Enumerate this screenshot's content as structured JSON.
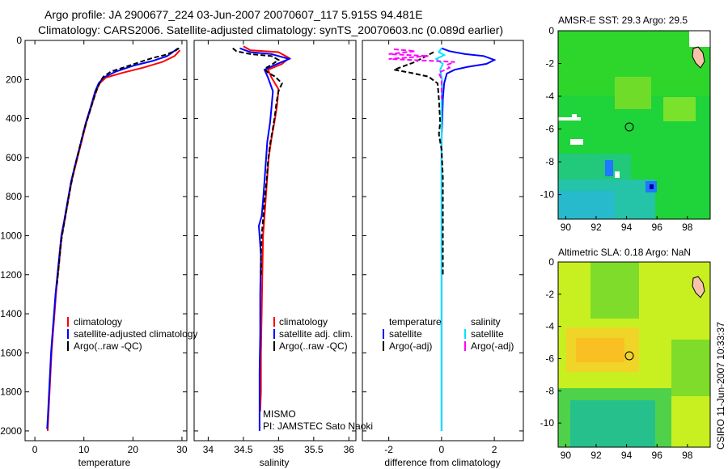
{
  "header": {
    "line1": "Argo profile: JA 2900677_224 03-Jun-2007 20070607_117 5.915S 94.481E",
    "line2": "Climatology: CARS2006. Satellite-adjusted climatology: synTS_20070603.nc (0.089d earlier)"
  },
  "footer": "CSIRO 11-Jun-2007 10:33:37",
  "colors": {
    "red": "#ff0000",
    "blue": "#0000ff",
    "black": "#000000",
    "cyan": "#00e5ff",
    "magenta": "#ff00ff"
  },
  "chart_data": [
    {
      "type": "line",
      "panel": "temperature",
      "xlabel": "temperature",
      "ylabel": "",
      "xlim": [
        -2,
        31
      ],
      "ylim": [
        2050,
        0
      ],
      "xticks": [
        "0",
        "10",
        "20",
        "30"
      ],
      "xtick_values": [
        0,
        10,
        20,
        30
      ],
      "yticks": [
        "0",
        "200",
        "400",
        "600",
        "800",
        "1000",
        "1200",
        "1400",
        "1600",
        "1800",
        "2000"
      ],
      "ytick_values": [
        0,
        200,
        400,
        600,
        800,
        1000,
        1200,
        1400,
        1600,
        1800,
        2000
      ],
      "legend": [
        "climatology",
        "satellite-adjusted climatology",
        "Argo(..raw -QC)"
      ],
      "series": [
        {
          "name": "climatology",
          "color": "red",
          "dash": "",
          "points": [
            [
              29.6,
              50
            ],
            [
              28.5,
              80
            ],
            [
              26,
              110
            ],
            [
              22,
              140
            ],
            [
              18,
              165
            ],
            [
              14.5,
              190
            ],
            [
              13.2,
              220
            ],
            [
              12.5,
              260
            ],
            [
              11.5,
              340
            ],
            [
              10.5,
              420
            ],
            [
              9.5,
              520
            ],
            [
              8.5,
              620
            ],
            [
              7.5,
              720
            ],
            [
              6.8,
              820
            ],
            [
              6.1,
              920
            ],
            [
              5.5,
              1000
            ],
            [
              5.1,
              1100
            ],
            [
              4.7,
              1200
            ],
            [
              4.3,
              1300
            ],
            [
              4.0,
              1400
            ],
            [
              3.7,
              1500
            ],
            [
              3.4,
              1600
            ],
            [
              3.2,
              1700
            ],
            [
              3.0,
              1800
            ],
            [
              2.8,
              1900
            ],
            [
              2.6,
              2000
            ]
          ]
        },
        {
          "name": "satellite-adjusted",
          "color": "blue",
          "dash": "",
          "points": [
            [
              29.2,
              40
            ],
            [
              27,
              80
            ],
            [
              24,
              105
            ],
            [
              20,
              130
            ],
            [
              16.5,
              160
            ],
            [
              14,
              190
            ],
            [
              13,
              220
            ],
            [
              12.3,
              260
            ],
            [
              11.4,
              340
            ],
            [
              10.4,
              420
            ],
            [
              9.4,
              520
            ],
            [
              8.4,
              620
            ],
            [
              7.4,
              720
            ],
            [
              6.7,
              820
            ],
            [
              6.0,
              920
            ],
            [
              5.4,
              1000
            ],
            [
              5.0,
              1100
            ],
            [
              4.6,
              1200
            ],
            [
              4.2,
              1300
            ],
            [
              3.9,
              1400
            ],
            [
              3.6,
              1500
            ],
            [
              3.3,
              1600
            ],
            [
              3.1,
              1700
            ],
            [
              2.9,
              1800
            ],
            [
              2.7,
              1900
            ],
            [
              2.5,
              1990
            ]
          ]
        },
        {
          "name": "Argo",
          "color": "black",
          "dash": "6 3",
          "points": [
            [
              29.4,
              40
            ],
            [
              28.5,
              55
            ],
            [
              26.5,
              75
            ],
            [
              24,
              90
            ],
            [
              21.5,
              110
            ],
            [
              18.5,
              135
            ],
            [
              15.5,
              160
            ],
            [
              14,
              185
            ],
            [
              13.6,
              200
            ],
            [
              12.8,
              240
            ],
            [
              12,
              300
            ],
            [
              11,
              380
            ],
            [
              10,
              460
            ],
            [
              9,
              560
            ],
            [
              8,
              660
            ],
            [
              7.2,
              760
            ],
            [
              6.5,
              860
            ],
            [
              5.8,
              960
            ],
            [
              5.3,
              1040
            ],
            [
              4.9,
              1150
            ],
            [
              4.5,
              1250
            ]
          ]
        }
      ]
    },
    {
      "type": "line",
      "panel": "salinity",
      "xlabel": "salinity",
      "xlim": [
        33.8,
        36.1
      ],
      "ylim": [
        2050,
        0
      ],
      "xticks": [
        "34",
        "34.5",
        "35",
        "35.5",
        "36"
      ],
      "xtick_values": [
        34,
        34.5,
        35,
        35.5,
        36
      ],
      "legend": [
        "climatology",
        "satellite adj. clim.",
        "Argo(..raw -QC)"
      ],
      "annotations": [
        "MISMO",
        "PI: JAMSTEC Sato Naoki"
      ],
      "series": [
        {
          "name": "climatology",
          "color": "red",
          "dash": "",
          "points": [
            [
              34.5,
              30
            ],
            [
              34.6,
              50
            ],
            [
              35.0,
              60
            ],
            [
              35.15,
              90
            ],
            [
              35.05,
              120
            ],
            [
              34.85,
              150
            ],
            [
              34.9,
              190
            ],
            [
              35.0,
              250
            ],
            [
              34.98,
              330
            ],
            [
              34.95,
              400
            ],
            [
              34.9,
              500
            ],
            [
              34.86,
              600
            ],
            [
              34.84,
              700
            ],
            [
              34.82,
              800
            ],
            [
              34.8,
              900
            ],
            [
              34.78,
              1000
            ],
            [
              34.77,
              1200
            ],
            [
              34.76,
              1400
            ],
            [
              34.75,
              1600
            ],
            [
              34.75,
              1800
            ],
            [
              34.74,
              1900
            ]
          ]
        },
        {
          "name": "satellite",
          "color": "blue",
          "dash": "",
          "points": [
            [
              34.45,
              40
            ],
            [
              34.6,
              60
            ],
            [
              34.9,
              70
            ],
            [
              35.15,
              95
            ],
            [
              34.95,
              125
            ],
            [
              34.8,
              150
            ],
            [
              34.85,
              190
            ],
            [
              34.92,
              260
            ],
            [
              34.9,
              340
            ],
            [
              34.88,
              420
            ],
            [
              34.84,
              520
            ],
            [
              34.82,
              620
            ],
            [
              34.8,
              720
            ],
            [
              34.78,
              820
            ],
            [
              34.76,
              900
            ],
            [
              34.72,
              950
            ],
            [
              34.73,
              1000
            ],
            [
              34.75,
              1100
            ],
            [
              34.74,
              1300
            ],
            [
              34.74,
              1500
            ],
            [
              34.73,
              1700
            ],
            [
              34.73,
              1900
            ],
            [
              34.73,
              2000
            ]
          ]
        },
        {
          "name": "Argo",
          "color": "black",
          "dash": "6 3",
          "points": [
            [
              34.35,
              40
            ],
            [
              34.4,
              55
            ],
            [
              34.6,
              70
            ],
            [
              34.9,
              80
            ],
            [
              35.0,
              100
            ],
            [
              34.9,
              125
            ],
            [
              34.8,
              145
            ],
            [
              34.85,
              165
            ],
            [
              34.95,
              185
            ],
            [
              35.05,
              220
            ],
            [
              35.0,
              260
            ],
            [
              34.97,
              320
            ],
            [
              34.95,
              380
            ],
            [
              34.92,
              450
            ],
            [
              34.88,
              530
            ],
            [
              34.85,
              620
            ],
            [
              34.83,
              720
            ],
            [
              34.8,
              820
            ],
            [
              34.78,
              920
            ],
            [
              34.76,
              1000
            ],
            [
              34.75,
              1100
            ],
            [
              34.75,
              1200
            ]
          ]
        }
      ]
    },
    {
      "type": "line",
      "panel": "difference",
      "xlabel": "difference from climatology",
      "xlim": [
        -3,
        3.1
      ],
      "ylim": [
        2050,
        0
      ],
      "xticks": [
        "-2",
        "0",
        "2"
      ],
      "xtick_values": [
        -2,
        0,
        2
      ],
      "legend_headers": [
        "temperature",
        "salinity"
      ],
      "legend_left": [
        "satellite",
        "Argo(-adj)"
      ],
      "legend_right": [
        "satellite",
        "Argo(-adj)"
      ],
      "series": [
        {
          "name": "temp satellite",
          "color": "blue",
          "dash": "",
          "points": [
            [
              0,
              40
            ],
            [
              0.3,
              55
            ],
            [
              0.9,
              70
            ],
            [
              1.6,
              80
            ],
            [
              2.0,
              100
            ],
            [
              1.7,
              120
            ],
            [
              1.0,
              135
            ],
            [
              0.5,
              150
            ],
            [
              0.2,
              170
            ],
            [
              0.1,
              220
            ],
            [
              0.05,
              300
            ],
            [
              0.03,
              400
            ],
            [
              0.0,
              500
            ],
            [
              0.0,
              700
            ],
            [
              0.0,
              900
            ],
            [
              0.0,
              1200
            ],
            [
              0.0,
              1500
            ],
            [
              0.0,
              1800
            ],
            [
              0.0,
              2000
            ]
          ]
        },
        {
          "name": "sal satellite",
          "color": "cyan",
          "dash": "",
          "points": [
            [
              0,
              40
            ],
            [
              -0.1,
              60
            ],
            [
              0.1,
              75
            ],
            [
              -0.2,
              95
            ],
            [
              0.05,
              120
            ],
            [
              -0.05,
              150
            ],
            [
              0.02,
              200
            ],
            [
              0,
              300
            ],
            [
              0,
              500
            ],
            [
              0,
              800
            ],
            [
              0,
              1100
            ],
            [
              0,
              1400
            ],
            [
              0,
              1700
            ],
            [
              0,
              2000
            ]
          ]
        },
        {
          "name": "temp Argo",
          "color": "black",
          "dash": "6 3",
          "points": [
            [
              -0.3,
              60
            ],
            [
              -1.0,
              110
            ],
            [
              -1.8,
              150
            ],
            [
              -1.2,
              165
            ],
            [
              -0.5,
              185
            ],
            [
              -0.15,
              220
            ],
            [
              -0.1,
              300
            ],
            [
              -0.05,
              420
            ],
            [
              -0.1,
              480
            ],
            [
              0.0,
              560
            ],
            [
              0.05,
              700
            ],
            [
              0.05,
              900
            ],
            [
              0.05,
              1000
            ],
            [
              0.05,
              1200
            ]
          ]
        },
        {
          "name": "sal Argo",
          "color": "magenta",
          "dash": "6 3",
          "points": [
            [
              -1.8,
              45
            ],
            [
              -1.0,
              55
            ],
            [
              -2.0,
              70
            ],
            [
              -0.5,
              80
            ],
            [
              -2.0,
              95
            ],
            [
              0.5,
              110
            ],
            [
              0.2,
              125
            ],
            [
              0.3,
              140
            ],
            [
              -0.1,
              165
            ],
            [
              0.0,
              200
            ],
            [
              0.0,
              300
            ]
          ]
        }
      ]
    },
    {
      "type": "heatmap",
      "panel": "sst_map",
      "title": "AMSR-E SST: 29.3 Argo: 29.5",
      "xlim": [
        89.5,
        99.5
      ],
      "ylim": [
        -11.5,
        0
      ],
      "xticks": [
        "90",
        "92",
        "94",
        "96",
        "98"
      ],
      "xtick_values": [
        90,
        92,
        94,
        96,
        98
      ],
      "yticks": [
        "0",
        "-2",
        "-4",
        "-6",
        "-8",
        "-10"
      ],
      "ytick_values": [
        0,
        -2,
        -4,
        -6,
        -8,
        -10
      ],
      "marker": [
        94.48,
        -5.92
      ]
    },
    {
      "type": "heatmap",
      "panel": "sla_map",
      "title": "Altimetric SLA: 0.18 Argo: NaN",
      "xlim": [
        89.5,
        99.5
      ],
      "ylim": [
        -11.5,
        0
      ],
      "xticks": [
        "90",
        "92",
        "94",
        "96",
        "98"
      ],
      "xtick_values": [
        90,
        92,
        94,
        96,
        98
      ],
      "yticks": [
        "0",
        "-2",
        "-4",
        "-6",
        "-8",
        "-10"
      ],
      "ytick_values": [
        0,
        -2,
        -4,
        -6,
        -8,
        -10
      ],
      "marker": [
        94.48,
        -5.92
      ]
    }
  ]
}
